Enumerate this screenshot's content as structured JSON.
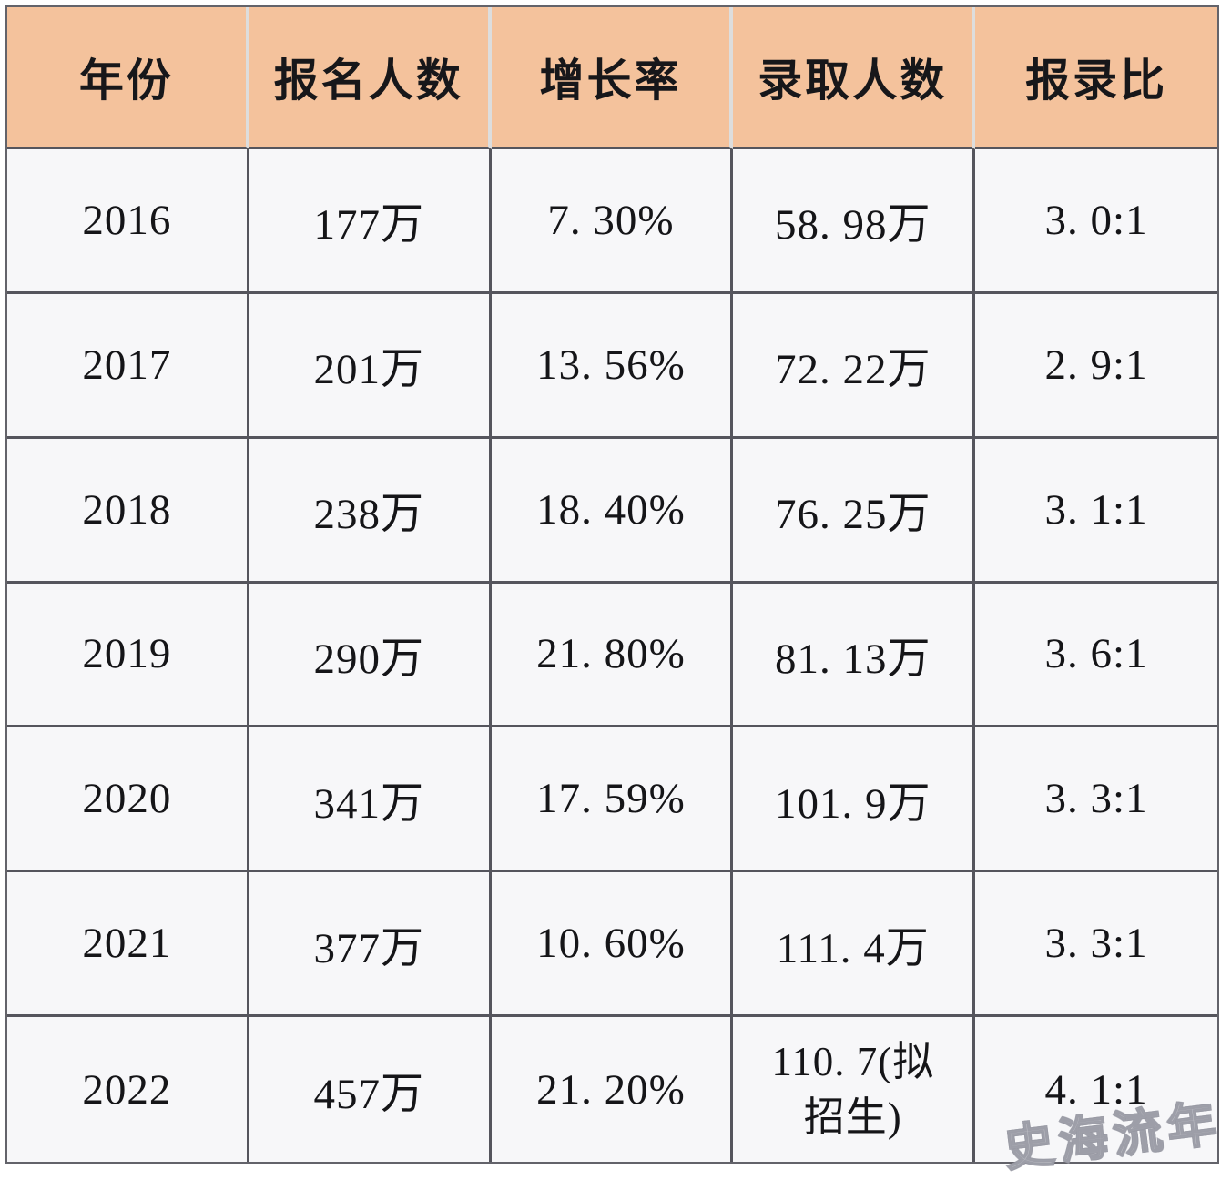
{
  "table": {
    "headers": [
      "年份",
      "报名人数",
      "增长率",
      "录取人数",
      "报录比"
    ],
    "rows": [
      {
        "cells": [
          "2016",
          "177万",
          "7. 30%",
          "58. 98万",
          "3. 0:1"
        ]
      },
      {
        "cells": [
          "2017",
          "201万",
          "13. 56%",
          "72. 22万",
          "2. 9:1"
        ]
      },
      {
        "cells": [
          "2018",
          "238万",
          "18. 40%",
          "76. 25万",
          "3. 1:1"
        ]
      },
      {
        "cells": [
          "2019",
          "290万",
          "21. 80%",
          "81. 13万",
          "3. 6:1"
        ]
      },
      {
        "cells": [
          "2020",
          "341万",
          "17. 59%",
          "101. 9万",
          "3. 3:1"
        ]
      },
      {
        "cells": [
          "2021",
          "377万",
          "10. 60%",
          "111. 4万",
          "3. 3:1"
        ]
      },
      {
        "cells": [
          "2022",
          "457万",
          "21. 20%",
          "110. 7(拟\n招生)",
          "4. 1:1"
        ]
      }
    ]
  },
  "watermark": "史海流年",
  "colors": {
    "header_bg": "#f4c29c",
    "grid_line": "#55555d",
    "cell_bg": "#f7f7f9",
    "header_separator": "#dddddd",
    "text": "#151518"
  },
  "chart_data": {
    "type": "table",
    "title": "",
    "columns": [
      "年份",
      "报名人数",
      "增长率",
      "录取人数",
      "报录比"
    ],
    "rows": [
      [
        "2016",
        "177万",
        "7.30%",
        "58.98万",
        "3.0:1"
      ],
      [
        "2017",
        "201万",
        "13.56%",
        "72.22万",
        "2.9:1"
      ],
      [
        "2018",
        "238万",
        "18.40%",
        "76.25万",
        "3.1:1"
      ],
      [
        "2019",
        "290万",
        "21.80%",
        "81.13万",
        "3.6:1"
      ],
      [
        "2020",
        "341万",
        "17.59%",
        "101.9万",
        "3.3:1"
      ],
      [
        "2021",
        "377万",
        "10.60%",
        "111.4万",
        "3.3:1"
      ],
      [
        "2022",
        "457万",
        "21.20%",
        "110.7(拟招生)",
        "4.1:1"
      ]
    ],
    "series": [
      {
        "name": "报名人数(万)",
        "values": [
          177,
          201,
          238,
          290,
          341,
          377,
          457
        ]
      },
      {
        "name": "增长率(%)",
        "values": [
          7.3,
          13.56,
          18.4,
          21.8,
          17.59,
          10.6,
          21.2
        ]
      },
      {
        "name": "录取人数(万)",
        "values": [
          58.98,
          72.22,
          76.25,
          81.13,
          101.9,
          111.4,
          110.7
        ]
      },
      {
        "name": "报录比",
        "values": [
          "3.0:1",
          "2.9:1",
          "3.1:1",
          "3.6:1",
          "3.3:1",
          "3.3:1",
          "4.1:1"
        ]
      }
    ],
    "categories": [
      "2016",
      "2017",
      "2018",
      "2019",
      "2020",
      "2021",
      "2022"
    ]
  }
}
